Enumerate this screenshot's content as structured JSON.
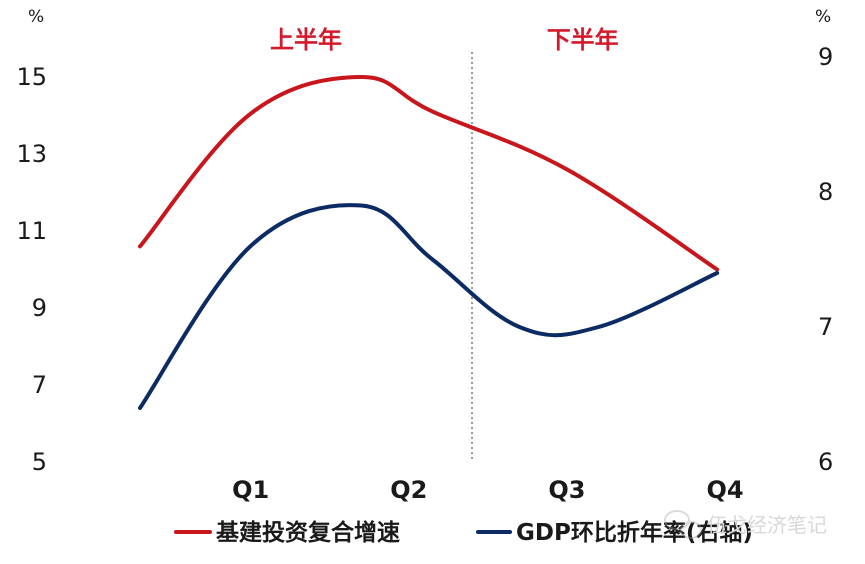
{
  "chart_data": {
    "type": "line",
    "categories": [
      "Q1",
      "Q2",
      "Q3",
      "Q4"
    ],
    "x_start": 0.3,
    "series": [
      {
        "name": "基建投资复合增速",
        "axis": "left",
        "color": "#c8161d",
        "x": [
          0.3,
          1.0,
          1.7,
          2.15,
          3.0,
          3.95
        ],
        "values": [
          10.6,
          14.05,
          15.0,
          14.1,
          12.6,
          10.0
        ]
      },
      {
        "name": "GDP环比折年率(右轴)",
        "axis": "right",
        "color": "#0c2b64",
        "x": [
          0.3,
          1.0,
          1.7,
          2.15,
          2.7,
          3.2,
          3.95
        ],
        "values": [
          6.4,
          7.6,
          7.9,
          7.5,
          7.0,
          7.0,
          7.4
        ]
      }
    ],
    "y_left": {
      "unit": "%",
      "ticks": [
        "15",
        "13",
        "11",
        "9",
        "7",
        "5"
      ],
      "range": [
        5,
        15
      ]
    },
    "y_right": {
      "unit": "%",
      "ticks": [
        "9",
        "8",
        "7",
        "6"
      ],
      "range": [
        6,
        9
      ]
    },
    "xlim": [
      0.3,
      3.95
    ],
    "divider_x": 2.4,
    "divider_style": "dotted",
    "annotations": [
      {
        "text": "上半年",
        "x": 1.35
      },
      {
        "text": "下半年",
        "x": 3.1
      }
    ],
    "grid": false,
    "legend": {
      "position": "bottom",
      "items": [
        "基建投资复合增速",
        "GDP环比折年率(右轴)"
      ]
    }
  },
  "watermark": {
    "text": "伍戈经济笔记",
    "icon": "wechat-icon"
  }
}
